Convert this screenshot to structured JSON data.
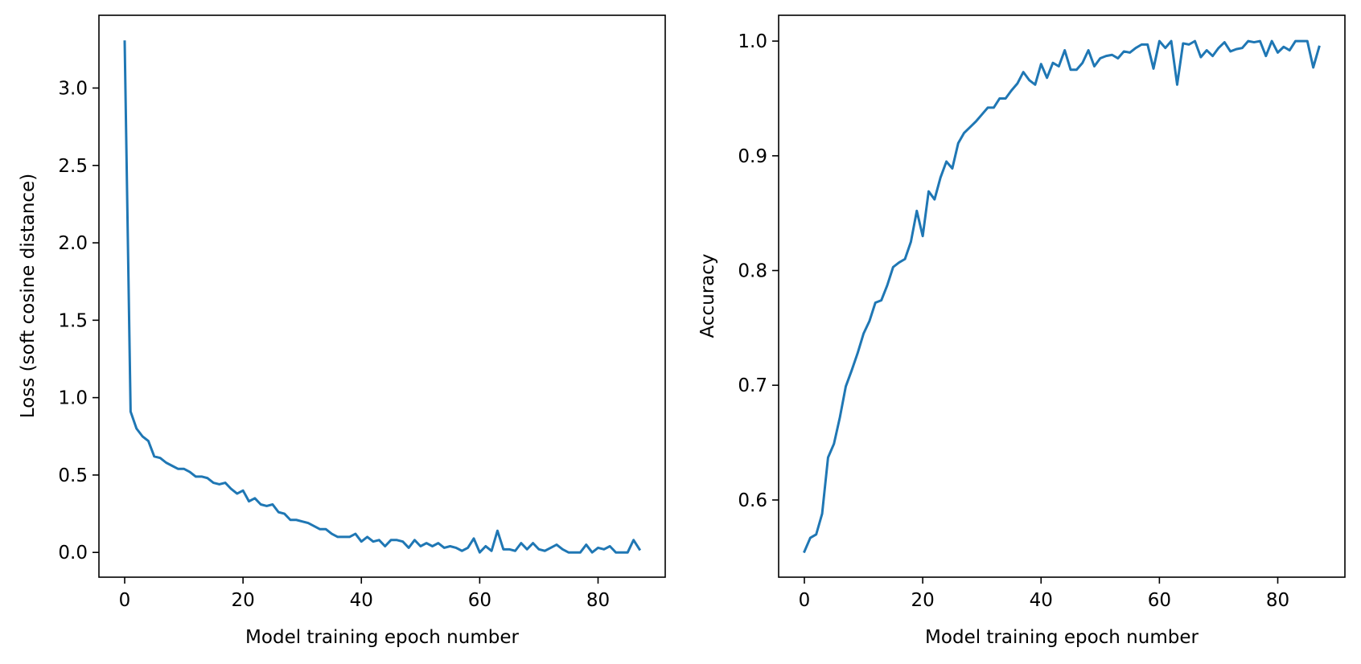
{
  "chart_data": [
    {
      "type": "line",
      "xlabel": "Model training epoch number",
      "ylabel": "Loss (soft cosine distance)",
      "xlim": [
        -4.35,
        91.35
      ],
      "ylim": [
        -0.16,
        3.47
      ],
      "xticks": [
        0,
        20,
        40,
        60,
        80
      ],
      "xtick_labels": [
        "0",
        "20",
        "40",
        "60",
        "80"
      ],
      "yticks": [
        0.0,
        0.5,
        1.0,
        1.5,
        2.0,
        2.5,
        3.0
      ],
      "ytick_labels": [
        "0.0",
        "0.5",
        "1.0",
        "1.5",
        "2.0",
        "2.5",
        "3.0"
      ],
      "grid": false,
      "color": "#1f77b4",
      "series": [
        {
          "x": [
            0,
            1,
            2,
            3,
            4,
            5,
            6,
            7,
            8,
            9,
            10,
            11,
            12,
            13,
            14,
            15,
            16,
            17,
            18,
            19,
            20,
            21,
            22,
            23,
            24,
            25,
            26,
            27,
            28,
            29,
            30,
            31,
            32,
            33,
            34,
            35,
            36,
            37,
            38,
            39,
            40,
            41,
            42,
            43,
            44,
            45,
            46,
            47,
            48,
            49,
            50,
            51,
            52,
            53,
            54,
            55,
            56,
            57,
            58,
            59,
            60,
            61,
            62,
            63,
            64,
            65,
            66,
            67,
            68,
            69,
            70,
            71,
            72,
            73,
            74,
            75,
            76,
            77,
            78,
            79,
            80,
            81,
            82,
            83,
            84,
            85,
            86,
            87
          ],
          "values": [
            3.3,
            0.91,
            0.8,
            0.75,
            0.72,
            0.62,
            0.61,
            0.58,
            0.56,
            0.54,
            0.54,
            0.52,
            0.49,
            0.49,
            0.48,
            0.45,
            0.44,
            0.45,
            0.41,
            0.38,
            0.4,
            0.33,
            0.35,
            0.31,
            0.3,
            0.31,
            0.26,
            0.25,
            0.21,
            0.21,
            0.2,
            0.19,
            0.17,
            0.15,
            0.15,
            0.12,
            0.1,
            0.1,
            0.1,
            0.12,
            0.07,
            0.1,
            0.07,
            0.08,
            0.04,
            0.08,
            0.08,
            0.07,
            0.03,
            0.08,
            0.04,
            0.06,
            0.04,
            0.06,
            0.03,
            0.04,
            0.03,
            0.01,
            0.03,
            0.09,
            0.0,
            0.04,
            0.01,
            0.14,
            0.02,
            0.02,
            0.01,
            0.06,
            0.02,
            0.06,
            0.02,
            0.01,
            0.03,
            0.05,
            0.02,
            0.0,
            0.0,
            0.0,
            0.05,
            0.0,
            0.03,
            0.02,
            0.04,
            0.0,
            0.0,
            0.0,
            0.08,
            0.02
          ]
        }
      ]
    },
    {
      "type": "line",
      "xlabel": "Model training epoch number",
      "ylabel": "Accuracy",
      "xlim": [
        -4.35,
        91.35
      ],
      "ylim": [
        0.5327,
        1.0225
      ],
      "xticks": [
        0,
        20,
        40,
        60,
        80
      ],
      "xtick_labels": [
        "0",
        "20",
        "40",
        "60",
        "80"
      ],
      "yticks": [
        0.6,
        0.7,
        0.8,
        0.9,
        1.0
      ],
      "ytick_labels": [
        "0.6",
        "0.7",
        "0.8",
        "0.9",
        "1.0"
      ],
      "grid": false,
      "color": "#1f77b4",
      "series": [
        {
          "x": [
            0,
            1,
            2,
            3,
            4,
            5,
            6,
            7,
            8,
            9,
            10,
            11,
            12,
            13,
            14,
            15,
            16,
            17,
            18,
            19,
            20,
            21,
            22,
            23,
            24,
            25,
            26,
            27,
            28,
            29,
            30,
            31,
            32,
            33,
            34,
            35,
            36,
            37,
            38,
            39,
            40,
            41,
            42,
            43,
            44,
            45,
            46,
            47,
            48,
            49,
            50,
            51,
            52,
            53,
            54,
            55,
            56,
            57,
            58,
            59,
            60,
            61,
            62,
            63,
            64,
            65,
            66,
            67,
            68,
            69,
            70,
            71,
            72,
            73,
            74,
            75,
            76,
            77,
            78,
            79,
            80,
            81,
            82,
            83,
            84,
            85,
            86,
            87
          ],
          "values": [
            0.555,
            0.567,
            0.57,
            0.588,
            0.637,
            0.649,
            0.672,
            0.699,
            0.713,
            0.728,
            0.745,
            0.756,
            0.772,
            0.774,
            0.787,
            0.803,
            0.807,
            0.81,
            0.825,
            0.852,
            0.83,
            0.869,
            0.862,
            0.881,
            0.895,
            0.889,
            0.911,
            0.92,
            0.925,
            0.93,
            0.936,
            0.942,
            0.942,
            0.95,
            0.95,
            0.957,
            0.963,
            0.973,
            0.966,
            0.962,
            0.98,
            0.968,
            0.981,
            0.978,
            0.992,
            0.975,
            0.975,
            0.981,
            0.992,
            0.978,
            0.985,
            0.987,
            0.988,
            0.985,
            0.991,
            0.99,
            0.994,
            0.997,
            0.997,
            0.976,
            1.0,
            0.994,
            1.0,
            0.962,
            0.998,
            0.997,
            1.0,
            0.986,
            0.992,
            0.987,
            0.994,
            0.999,
            0.991,
            0.993,
            0.994,
            1.0,
            0.999,
            1.0,
            0.987,
            1.0,
            0.99,
            0.995,
            0.992,
            1.0,
            1.0,
            1.0,
            0.977,
            0.995
          ]
        }
      ]
    }
  ]
}
